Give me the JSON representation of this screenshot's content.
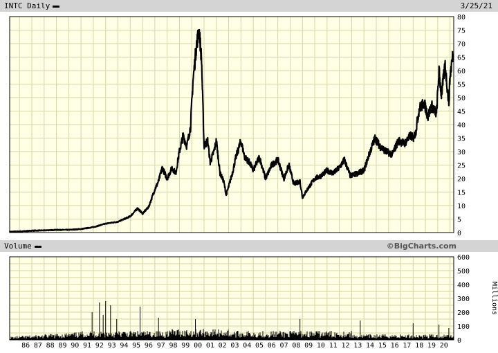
{
  "header": {
    "ticker_label": "INTC Daily",
    "date": "3/25/21"
  },
  "volume_panel": {
    "label": "Volume",
    "credit": "©BigCharts.com",
    "unit_label": "Millions"
  },
  "colors": {
    "plot_bg": "#ffffe6",
    "grid": "#d6d6a6",
    "band": "#d4d4d4",
    "series": "#000000"
  },
  "chart_data": [
    {
      "type": "line",
      "title": "INTC Daily",
      "series": [
        {
          "name": "INTC",
          "x": [
            1985.2,
            1986,
            1987,
            1988,
            1989,
            1990,
            1991,
            1992,
            1993,
            1994,
            1995,
            1995.6,
            1996,
            1996.5,
            1997,
            1997.3,
            1997.6,
            1998,
            1998.4,
            1998.7,
            1999,
            1999.3,
            1999.6,
            1999.9,
            2000.1,
            2000.4,
            2000.6,
            2000.8,
            2001,
            2001.3,
            2001.5,
            2001.8,
            2002,
            2002.3,
            2002.6,
            2002.8,
            2003,
            2003.3,
            2003.6,
            2004,
            2004.3,
            2004.7,
            2005,
            2005.5,
            2006,
            2006.5,
            2007,
            2007.5,
            2007.9,
            2008.3,
            2008.8,
            2009,
            2009.4,
            2010,
            2010.5,
            2011,
            2011.5,
            2012,
            2012.4,
            2012.9,
            2013.5,
            2014,
            2014.5,
            2014.9,
            2015.3,
            2015.8,
            2016.3,
            2016.8,
            2017.3,
            2017.8,
            2018,
            2018.2,
            2018.5,
            2018.9,
            2019.2,
            2019.5,
            2019.9,
            2020.1,
            2020.3,
            2020.6,
            2020.9,
            2021.0,
            2021.23
          ],
          "values": [
            0.3,
            0.4,
            0.7,
            0.8,
            1.0,
            1.0,
            1.3,
            2.0,
            3.3,
            4.0,
            6.0,
            9.0,
            7.0,
            9.5,
            16,
            19,
            24,
            20,
            24,
            22,
            30,
            36,
            32,
            39,
            56,
            70,
            75,
            64,
            32,
            34,
            26,
            30,
            34,
            22,
            19,
            14,
            17,
            22,
            28,
            34,
            28,
            26,
            23,
            28,
            20,
            25,
            27,
            20,
            25,
            18,
            19,
            13,
            16,
            20,
            21,
            23,
            22,
            24,
            27,
            21,
            22,
            23,
            30,
            35,
            32,
            30,
            29,
            34,
            33,
            36,
            35,
            37,
            46,
            48,
            43,
            47,
            44,
            60,
            51,
            62,
            48,
            58,
            66
          ]
        }
      ],
      "xlim": [
        1985.2,
        2021.3
      ],
      "ylim": [
        0,
        80
      ],
      "y_ticks": [
        0,
        5,
        10,
        15,
        20,
        25,
        30,
        35,
        40,
        45,
        50,
        55,
        60,
        65,
        70,
        75,
        80
      ],
      "grid": true
    },
    {
      "type": "bar",
      "title": "Volume",
      "ylabel": "Millions",
      "ylim": [
        0,
        600
      ],
      "y_ticks": [
        0,
        100,
        200,
        300,
        400,
        500,
        600
      ],
      "x_tick_labels": [
        "86",
        "87",
        "88",
        "89",
        "90",
        "91",
        "92",
        "93",
        "94",
        "95",
        "96",
        "97",
        "98",
        "99",
        "00",
        "01",
        "02",
        "03",
        "04",
        "05",
        "06",
        "07",
        "08",
        "09",
        "10",
        "11",
        "12",
        "13",
        "14",
        "15",
        "16",
        "17",
        "18",
        "19",
        "20"
      ],
      "spikes": [
        {
          "x": 1991.9,
          "value": 200
        },
        {
          "x": 1992.5,
          "value": 270
        },
        {
          "x": 1992.8,
          "value": 180
        },
        {
          "x": 1993.0,
          "value": 280
        },
        {
          "x": 1993.4,
          "value": 250
        },
        {
          "x": 1993.9,
          "value": 150
        },
        {
          "x": 1995.8,
          "value": 240
        },
        {
          "x": 1997.3,
          "value": 160
        },
        {
          "x": 2000.3,
          "value": 150
        },
        {
          "x": 2008.8,
          "value": 150
        },
        {
          "x": 2013.7,
          "value": 140
        },
        {
          "x": 2018.0,
          "value": 120
        },
        {
          "x": 2020.1,
          "value": 110
        },
        {
          "x": 2020.9,
          "value": 85
        }
      ]
    }
  ]
}
